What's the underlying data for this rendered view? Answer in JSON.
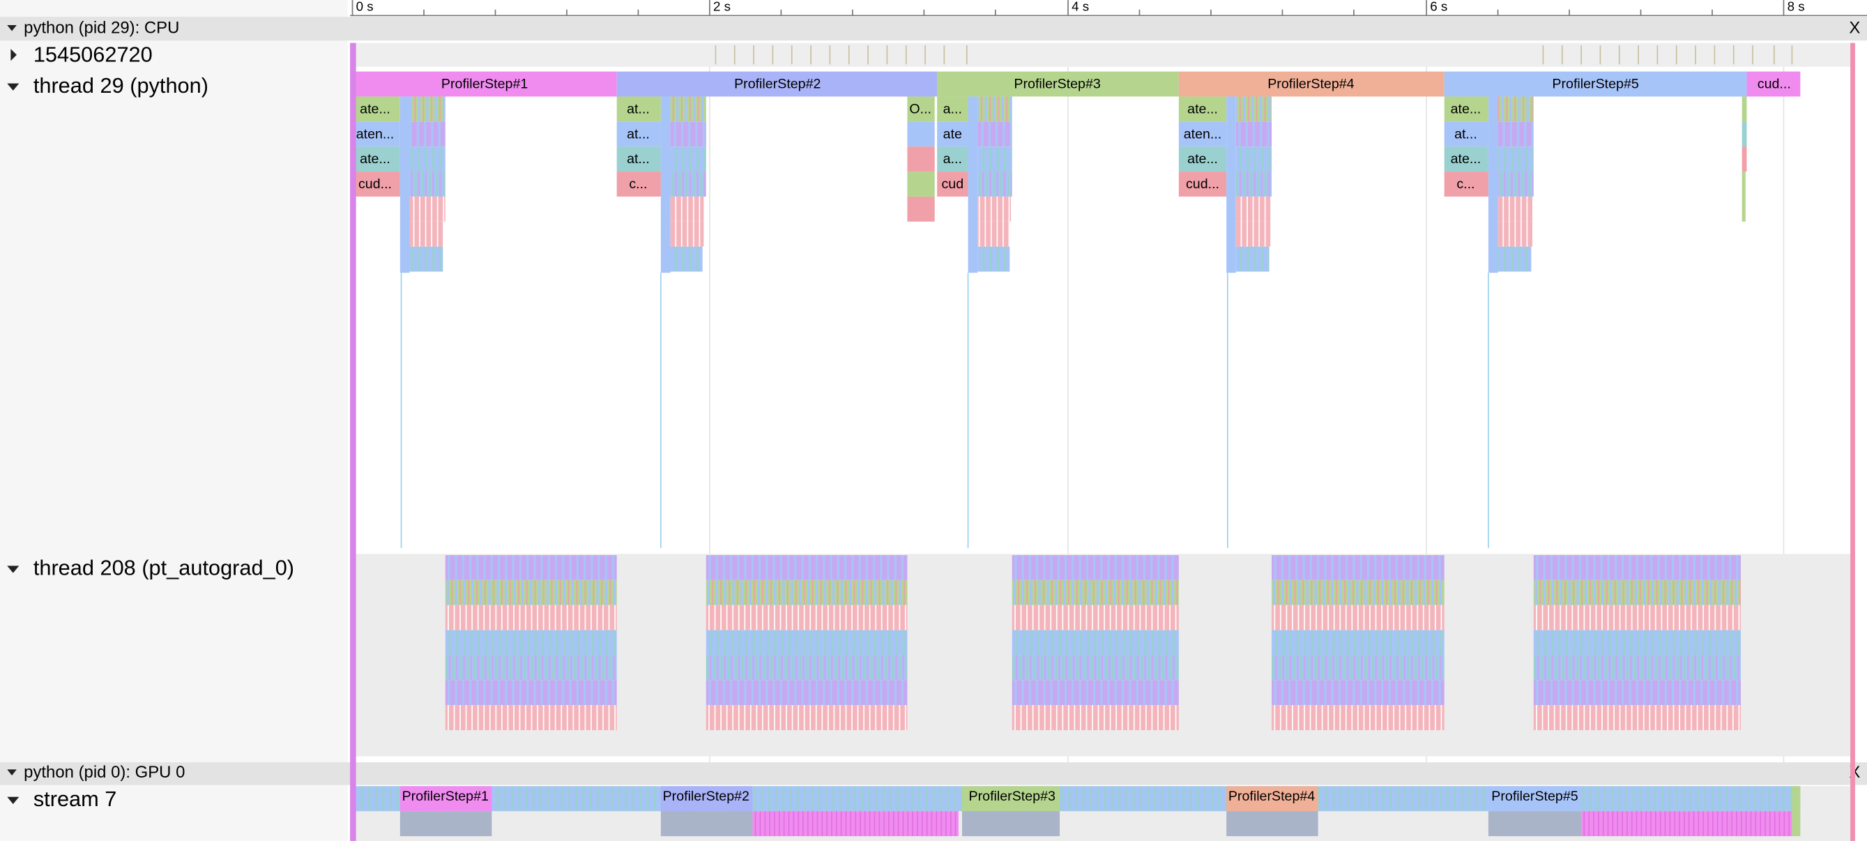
{
  "ruler": {
    "ticks": [
      "0 s",
      "2 s",
      "4 s",
      "6 s",
      "8 s"
    ]
  },
  "processes": [
    {
      "title": "python (pid 29): CPU",
      "close": "X",
      "threads": [
        {
          "name": "1545062720"
        },
        {
          "name": "thread 29 (python)",
          "slices": [
            "ProfilerStep#1",
            "ProfilerStep#2",
            "ProfilerStep#3",
            "ProfilerStep#4",
            "ProfilerStep#5",
            "cud...",
            "ate...",
            "aten...",
            "ate...",
            "cud...",
            "at...",
            "at...",
            "at...",
            "c...",
            "O...",
            "a...",
            "ate",
            "a...",
            "cud",
            "ate...",
            "aten...",
            "ate...",
            "cud...",
            "ate...",
            "at...",
            "ate...",
            "c..."
          ]
        },
        {
          "name": "thread 208 (pt_autograd_0)"
        }
      ]
    },
    {
      "title": "python (pid 0): GPU 0",
      "close": "X",
      "threads": [
        {
          "name": "stream 7",
          "slices": [
            "ProfilerStep#1",
            "ProfilerStep#2",
            "ProfilerStep#3",
            "ProfilerStep#4",
            "ProfilerStep#5"
          ]
        }
      ]
    }
  ]
}
